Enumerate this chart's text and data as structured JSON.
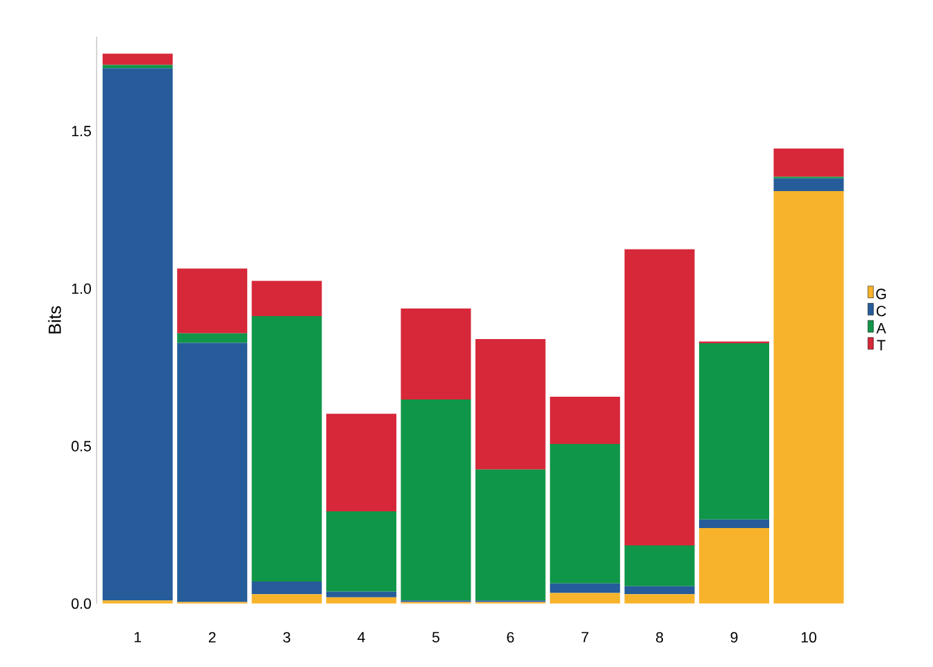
{
  "chart_data": {
    "type": "bar",
    "stacked": true,
    "ylabel": "Bits",
    "categories": [
      "1",
      "2",
      "3",
      "4",
      "5",
      "6",
      "7",
      "8",
      "9",
      "10"
    ],
    "series": [
      {
        "name": "G",
        "color": "#f7b32b",
        "values": [
          0.01,
          0.005,
          0.03,
          0.02,
          0.005,
          0.005,
          0.034,
          0.03,
          0.24,
          1.31
        ]
      },
      {
        "name": "C",
        "color": "#255c99",
        "values": [
          1.69,
          0.823,
          0.04,
          0.018,
          0.005,
          0.005,
          0.03,
          0.025,
          0.027,
          0.04
        ]
      },
      {
        "name": "A",
        "color": "#109648",
        "values": [
          0.01,
          0.03,
          0.843,
          0.255,
          0.638,
          0.416,
          0.443,
          0.13,
          0.56,
          0.005
        ]
      },
      {
        "name": "T",
        "color": "#d62839",
        "values": [
          0.036,
          0.206,
          0.112,
          0.31,
          0.289,
          0.414,
          0.15,
          0.94,
          0.005,
          0.09
        ]
      }
    ],
    "ylim": [
      0,
      1.8
    ],
    "yticks": [
      {
        "value": 0,
        "label": "0.0"
      },
      {
        "value": 0.5,
        "label": "0.5"
      },
      {
        "value": 1.0,
        "label": "1.0"
      },
      {
        "value": 1.5,
        "label": "1.5"
      }
    ],
    "grid": false,
    "legend": "right"
  }
}
